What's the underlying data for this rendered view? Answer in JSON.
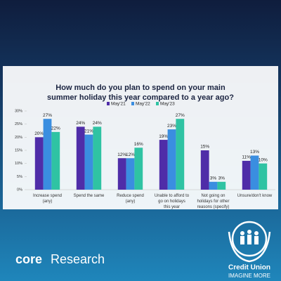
{
  "chart_data": {
    "type": "bar",
    "title": "How much do you plan to spend on your main summer holiday this year compared to a year ago?",
    "categories": [
      "Increase spend (any)",
      "Spend the same",
      "Reduce spend (any)",
      "Unable to afford to go on holidays this year",
      "Not going on holidays for other reasons (specify)",
      "Unsure/don't know"
    ],
    "series": [
      {
        "name": "May'21",
        "color": "#4f2da8",
        "values": [
          20,
          24,
          12,
          19,
          15,
          11
        ],
        "value_labels": [
          "20%",
          "24%",
          "12%",
          "19%",
          "15%",
          "11%"
        ]
      },
      {
        "name": "May'22",
        "color": "#3a8ee0",
        "values": [
          27,
          21,
          12,
          23,
          3,
          13
        ],
        "value_labels": [
          "27%",
          "21%",
          "12%",
          "23%",
          "3%",
          "13%"
        ]
      },
      {
        "name": "May'23",
        "color": "#2fc3a3",
        "values": [
          22,
          24,
          16,
          27,
          3,
          10
        ],
        "value_labels": [
          "22%",
          "24%",
          "16%",
          "27%",
          "3%",
          "10%"
        ]
      }
    ],
    "ylim": [
      0,
      30
    ],
    "yticks": [
      {
        "value": 0,
        "label": "0%"
      },
      {
        "value": 5,
        "label": "5%"
      },
      {
        "value": 10,
        "label": "10%"
      },
      {
        "value": 15,
        "label": "15%"
      },
      {
        "value": 20,
        "label": "20%"
      },
      {
        "value": 25,
        "label": "25%"
      },
      {
        "value": 30,
        "label": "30%"
      }
    ],
    "grid": false,
    "legend": "top"
  },
  "branding": {
    "core": "core",
    "research": "Research",
    "name": "Credit Union",
    "tagline": "IMAGINE MORE"
  }
}
